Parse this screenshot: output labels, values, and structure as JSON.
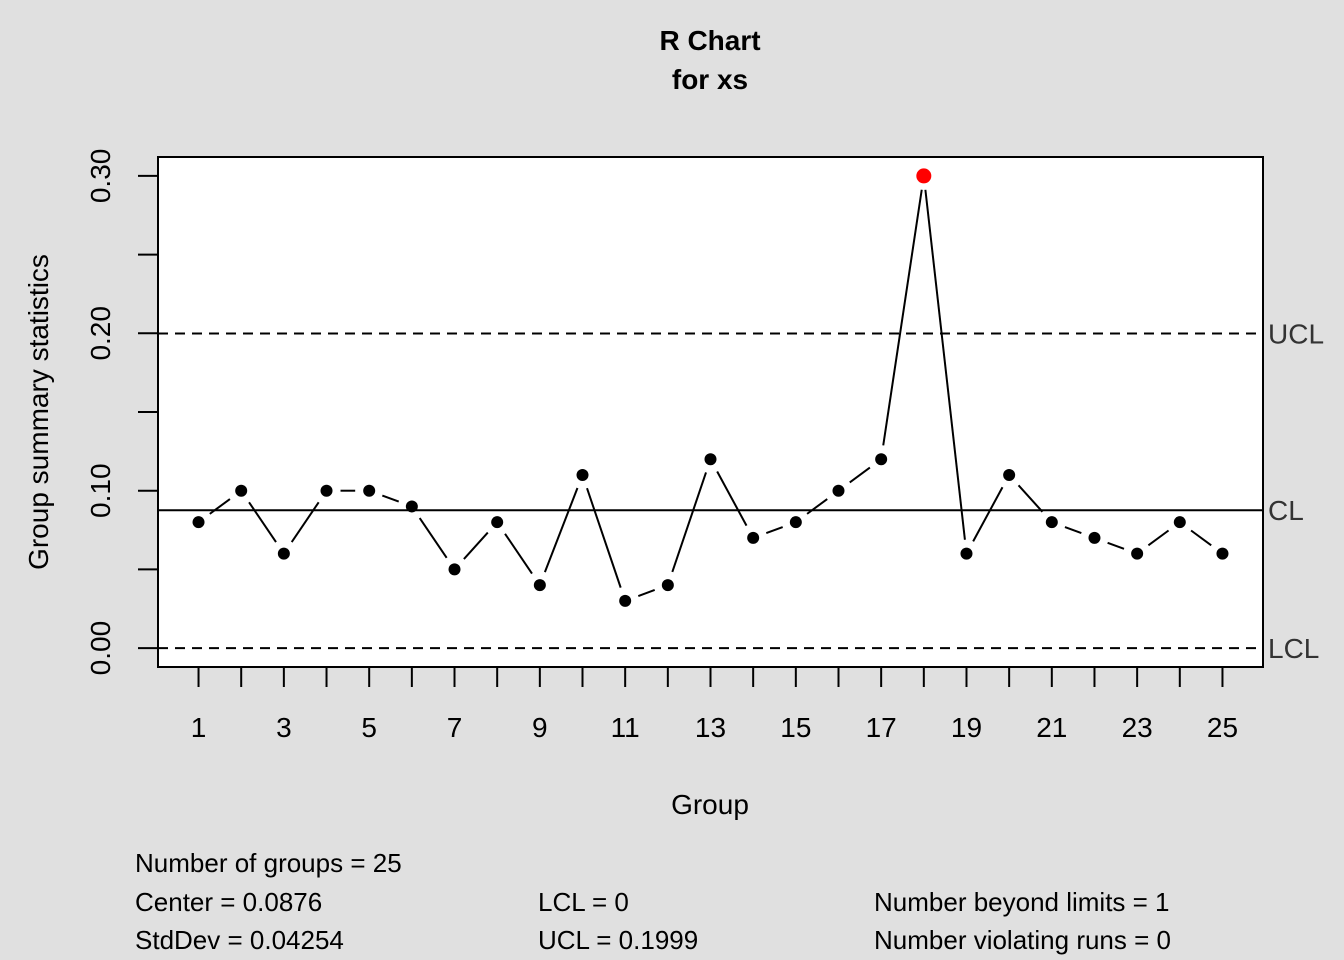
{
  "chart_data": {
    "type": "line",
    "title": "R Chart",
    "subtitle": "for xs",
    "xlabel": "Group",
    "ylabel": "Group summary statistics",
    "x": [
      1,
      2,
      3,
      4,
      5,
      6,
      7,
      8,
      9,
      10,
      11,
      12,
      13,
      14,
      15,
      16,
      17,
      18,
      19,
      20,
      21,
      22,
      23,
      24,
      25
    ],
    "series": [
      {
        "values": [
          0.08,
          0.1,
          0.06,
          0.1,
          0.1,
          0.09,
          0.05,
          0.08,
          0.04,
          0.11,
          0.03,
          0.04,
          0.12,
          0.07,
          0.08,
          0.1,
          0.12,
          0.3,
          0.06,
          0.11,
          0.08,
          0.07,
          0.06,
          0.08,
          0.06
        ]
      }
    ],
    "xlim": [
      0.05,
      25.95
    ],
    "ylim": [
      -0.012,
      0.312
    ],
    "x_ticks": [
      1,
      2,
      3,
      4,
      5,
      6,
      7,
      8,
      9,
      10,
      11,
      12,
      13,
      14,
      15,
      16,
      17,
      18,
      19,
      20,
      21,
      22,
      23,
      24,
      25
    ],
    "x_tick_labels": [
      "1",
      "3",
      "5",
      "7",
      "9",
      "11",
      "13",
      "15",
      "17",
      "19",
      "21",
      "23",
      "25"
    ],
    "x_tick_label_positions": [
      1,
      3,
      5,
      7,
      9,
      11,
      13,
      15,
      17,
      19,
      21,
      23,
      25
    ],
    "y_ticks": [
      0.0,
      0.05,
      0.1,
      0.15,
      0.2,
      0.25,
      0.3
    ],
    "y_tick_labels": [
      "0.00",
      "0.10",
      "0.20",
      "0.30"
    ],
    "y_tick_label_positions": [
      0.0,
      0.1,
      0.2,
      0.3
    ],
    "limits": [
      {
        "label": "UCL",
        "value": 0.1999,
        "style": "dashed"
      },
      {
        "label": "CL",
        "value": 0.0876,
        "style": "solid"
      },
      {
        "label": "LCL",
        "value": 0.0,
        "style": "dashed"
      }
    ],
    "violation_indices": [
      17
    ],
    "grid": false,
    "colors": {
      "background": "#e0e0e0",
      "plot_area": "#ffffff",
      "point": "#000000",
      "violation": "#ff0000",
      "limit_label": "#333333"
    }
  },
  "summary": {
    "groups": "Number of groups = 25",
    "center": "Center = 0.0876",
    "stddev": "StdDev = 0.04254",
    "lcl": "LCL = 0",
    "ucl": "UCL = 0.1999",
    "beyond": "Number beyond limits = 1",
    "runs": "Number violating runs = 0"
  }
}
